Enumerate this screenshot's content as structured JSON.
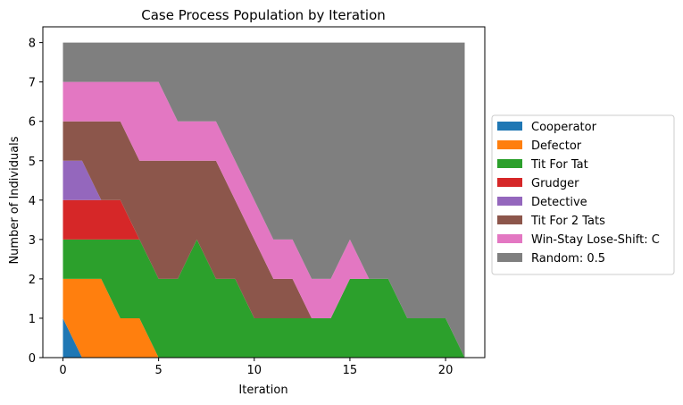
{
  "chart_data": {
    "type": "area",
    "title": "Case Process Population by Iteration",
    "xlabel": "Iteration",
    "ylabel": "Number of Individuals",
    "xlim": [
      -1.05,
      22.05
    ],
    "ylim": [
      0,
      8.4
    ],
    "xticks": [
      0,
      5,
      10,
      15,
      20
    ],
    "yticks": [
      0,
      1,
      2,
      3,
      4,
      5,
      6,
      7,
      8
    ],
    "legend_position": "right",
    "x": [
      0,
      1,
      2,
      3,
      4,
      5,
      6,
      7,
      8,
      9,
      10,
      11,
      12,
      13,
      14,
      15,
      16,
      17,
      18,
      19,
      20,
      21
    ],
    "series": [
      {
        "name": "Cooperator",
        "color": "#1f77b4",
        "values": [
          1,
          0,
          0,
          0,
          0,
          0,
          0,
          0,
          0,
          0,
          0,
          0,
          0,
          0,
          0,
          0,
          0,
          0,
          0,
          0,
          0,
          0
        ]
      },
      {
        "name": "Defector",
        "color": "#ff7f0e",
        "values": [
          1,
          2,
          2,
          1,
          1,
          0,
          0,
          0,
          0,
          0,
          0,
          0,
          0,
          0,
          0,
          0,
          0,
          0,
          0,
          0,
          0,
          0
        ]
      },
      {
        "name": "Tit For Tat",
        "color": "#2ca02c",
        "values": [
          1,
          1,
          1,
          2,
          2,
          2,
          2,
          3,
          2,
          2,
          1,
          1,
          1,
          1,
          1,
          2,
          2,
          2,
          1,
          1,
          1,
          0
        ]
      },
      {
        "name": "Grudger",
        "color": "#d62728",
        "values": [
          1,
          1,
          1,
          1,
          0,
          0,
          0,
          0,
          0,
          0,
          0,
          0,
          0,
          0,
          0,
          0,
          0,
          0,
          0,
          0,
          0,
          0
        ]
      },
      {
        "name": "Detective",
        "color": "#9467bd",
        "values": [
          1,
          1,
          0,
          0,
          0,
          0,
          0,
          0,
          0,
          0,
          0,
          0,
          0,
          0,
          0,
          0,
          0,
          0,
          0,
          0,
          0,
          0
        ]
      },
      {
        "name": "Tit For 2 Tats",
        "color": "#8c564b",
        "values": [
          1,
          1,
          2,
          2,
          2,
          3,
          3,
          2,
          3,
          2,
          2,
          1,
          1,
          0,
          0,
          0,
          0,
          0,
          0,
          0,
          0,
          0
        ]
      },
      {
        "name": "Win-Stay Lose-Shift: C",
        "color": "#e377c2",
        "values": [
          1,
          1,
          1,
          1,
          2,
          2,
          1,
          1,
          1,
          1,
          1,
          1,
          1,
          1,
          1,
          1,
          0,
          0,
          0,
          0,
          0,
          0
        ]
      },
      {
        "name": "Random: 0.5",
        "color": "#7f7f7f",
        "values": [
          1,
          1,
          1,
          1,
          1,
          1,
          2,
          2,
          2,
          3,
          4,
          5,
          5,
          6,
          6,
          5,
          6,
          6,
          7,
          7,
          7,
          8
        ]
      }
    ]
  }
}
